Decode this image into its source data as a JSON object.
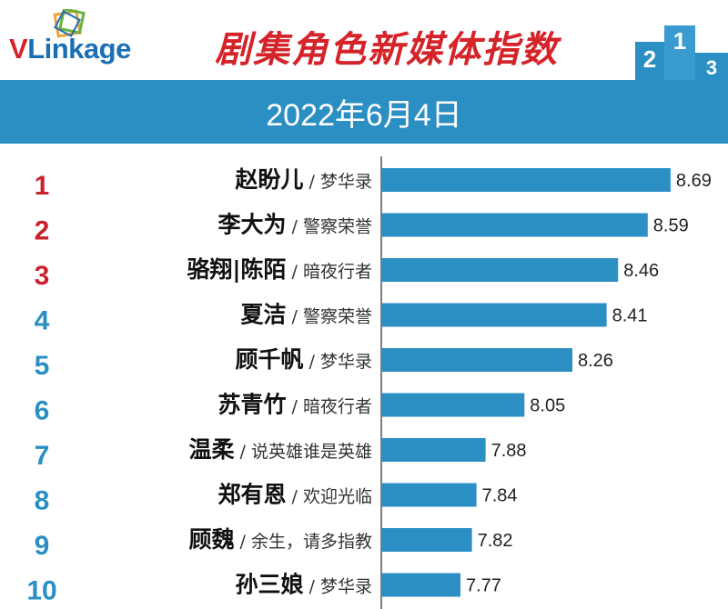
{
  "header": {
    "logo_text_v": "V",
    "logo_text_rest": "Linkage",
    "title": "剧集角色新媒体指数",
    "podium_labels": [
      "2",
      "1",
      "3"
    ]
  },
  "date": "2022年6月4日",
  "colors": {
    "bar": "#2b8fc4",
    "rank_top": "#c8232c",
    "rank_rest": "#2b8fc4",
    "title": "#d4242a"
  },
  "chart_data": {
    "type": "bar",
    "orientation": "horizontal",
    "ranks": [
      "1",
      "2",
      "3",
      "4",
      "5",
      "6",
      "7",
      "8",
      "9",
      "10"
    ],
    "categories": [
      "赵盼儿",
      "李大为",
      "骆翔|陈陌",
      "夏洁",
      "顾千帆",
      "苏青竹",
      "温柔",
      "郑有恩",
      "顾魏",
      "孙三娘"
    ],
    "shows": [
      "/ 梦华录",
      "/ 警察荣誉",
      "/ 暗夜行者",
      "/ 警察荣誉",
      "/ 梦华录",
      "/ 暗夜行者",
      "/ 说英雄谁是英雄",
      "/ 欢迎光临",
      "/ 余生，请多指教",
      "/ 梦华录"
    ],
    "values": [
      8.69,
      8.59,
      8.46,
      8.41,
      8.26,
      8.05,
      7.88,
      7.84,
      7.82,
      7.77
    ],
    "value_labels": [
      "8.69",
      "8.59",
      "8.46",
      "8.41",
      "8.26",
      "8.05",
      "7.88",
      "7.84",
      "7.82",
      "7.77"
    ]
  }
}
